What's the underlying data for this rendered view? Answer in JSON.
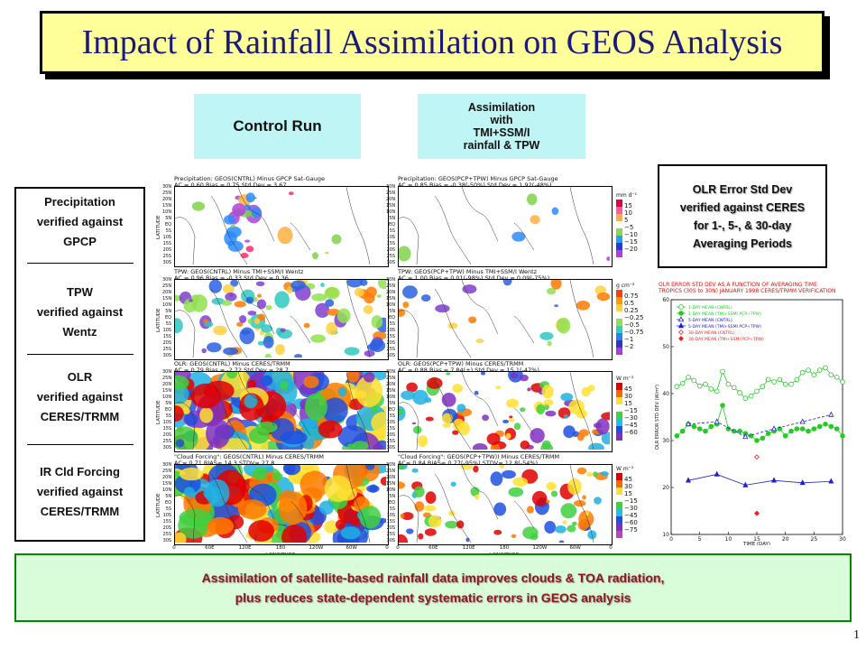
{
  "title": "Impact of Rainfall Assimilation on GEOS Analysis",
  "headers": {
    "control": "Control Run",
    "assim": [
      "Assimilation",
      "with",
      "TMI+SSM/I",
      "rainfall & TPW"
    ]
  },
  "legend": [
    {
      "id": "precip",
      "lines": [
        "Precipitation",
        "verified against",
        "GPCP"
      ]
    },
    {
      "id": "tpw",
      "lines": [
        "TPW",
        "verified against",
        "Wentz"
      ]
    },
    {
      "id": "olr",
      "lines": [
        "OLR",
        "verified against",
        "CERES/TRMM"
      ]
    },
    {
      "id": "cldforcing",
      "lines": [
        "IR Cld Forcing",
        "verified against",
        "CERES/TRMM"
      ]
    }
  ],
  "olr_box": [
    "OLR Error Std Dev",
    "verified against CERES",
    "for 1-, 5-, & 30-day",
    "Averaging Periods"
  ],
  "maps": {
    "lat_ticks": [
      "30N",
      "25N",
      "20N",
      "15N",
      "10N",
      "5N",
      "EQ",
      "5S",
      "10S",
      "15S",
      "20S",
      "25S",
      "30S"
    ],
    "lon_ticks": [
      "0",
      "60E",
      "120E",
      "180",
      "120W",
      "60W",
      "0"
    ],
    "lat_axis": "LATITUDE",
    "lon_axis": "LONGITUDE",
    "rows": [
      {
        "control": {
          "title": "Precipitation: GEOS(CNTRL) Minus GPCP Sat-Gauge",
          "stats": "AC = 0.60  Bias = 0.75  Std Dev = 3.67"
        },
        "assim": {
          "title": "Precipitation: GEOS(PCP+TPW) Minus GPCP Sat-Gauge",
          "stats": "AC = 0.85  Bias = -0.38(-50%)  Std Dev = 1.92(-48%)"
        }
      },
      {
        "control": {
          "title": "TPW: GEOS(CNTRL) Minus TMI+SSM/I Wentz",
          "stats": "AC = 0.96  Bias = -0.33  Std Dev = 0.36"
        },
        "assim": {
          "title": "TPW: GEOS(PCP+TPW) Minus TMI+SSM/I Wentz",
          "stats": "AC = 1.00  Bias = 0.01(-98%)  Std Dev = 0.09(-75%)"
        }
      },
      {
        "control": {
          "title": "OLR: GEOS(CNTRL) Minus CERES/TRMM",
          "stats": "AC = 0.79  Bias = -2.72  Std Dev = 28.7"
        },
        "assim": {
          "title": "OLR: GEOS(PCP+TPW) Minus CERES/TRMM",
          "stats": "AC = 0.88  Bias = 7.84(+)  Std Dev = 15.1(-47%)"
        }
      },
      {
        "control": {
          "title": "\"Cloud Forcing\": GEOS(CNTRL) Minus CERES/TRMM",
          "stats": "AC= 0.71  BIAS= 14.3  STDV= 27.8"
        },
        "assim": {
          "title": "\"Cloud Forcing\": GEOS(PCP+TPW)) Minus CERES/TRMM",
          "stats": "AC= 0.84  BIAS= 0.77(-95%)  STDV= 12.8(-54%)"
        }
      }
    ]
  },
  "scales": [
    {
      "unit": "mm d⁻¹",
      "labels": [
        "15",
        "10",
        "5",
        "−5",
        "−10",
        "−15",
        "−20"
      ],
      "colors": [
        "#e8003a",
        "#ff5a9a",
        "#ffb040",
        "#ffffff",
        "#8dd84a",
        "#22a0ff",
        "#2a38d8",
        "#b040d8"
      ]
    },
    {
      "unit": "g cm⁻²",
      "labels": [
        "0.75",
        "0.5",
        "0.25",
        "−0.25",
        "−0.5",
        "−0.75",
        "−1",
        "−2"
      ],
      "colors": [
        "#ff3f00",
        "#ff9a00",
        "#ffd040",
        "#ffffff",
        "#90e050",
        "#30d0c0",
        "#2a80f0",
        "#3830c8",
        "#a040d0"
      ]
    },
    {
      "unit": "W m⁻²",
      "labels": [
        "45",
        "30",
        "15",
        "−15",
        "−30",
        "−45",
        "−60"
      ],
      "colors": [
        "#e00000",
        "#ff6600",
        "#ffe030",
        "#ffffff",
        "#40d040",
        "#20c0e0",
        "#2050e0",
        "#8030c0"
      ]
    },
    {
      "unit": "W m⁻²",
      "labels": [
        "45",
        "30",
        "15",
        "−15",
        "−30",
        "−45",
        "−60",
        "−75"
      ],
      "colors": [
        "#e00000",
        "#ff6600",
        "#ffe030",
        "#ffffff",
        "#40d040",
        "#20c0e0",
        "#2050e0",
        "#8030c0",
        "#c040c0"
      ]
    }
  ],
  "chart_data": {
    "type": "line",
    "title": "OLR ERROR STD DEV AS A FUNCTION OF AVERAGING TIME",
    "subtitle": "TROPICS (30S to 30N)  JANUARY 1998  CERES/TRMM VERIFICATION",
    "xlabel": "TIME (DAY)",
    "ylabel": "OLR ERROR STD DEV (W/m²)",
    "xlim": [
      0,
      30
    ],
    "ylim": [
      10,
      60
    ],
    "xticks": [
      0,
      5,
      10,
      15,
      20,
      25,
      30
    ],
    "yticks": [
      10,
      20,
      30,
      40,
      50,
      60
    ],
    "legend_position": "top-left",
    "series": [
      {
        "name": "1-DAY MEAN (CNTRL)",
        "color": "#22cc22",
        "marker": "circle-open",
        "dash": "solid",
        "x": [
          1,
          2,
          3,
          4,
          5,
          6,
          7,
          8,
          9,
          10,
          11,
          12,
          13,
          14,
          15,
          16,
          17,
          18,
          19,
          20,
          21,
          22,
          23,
          24,
          25,
          26,
          27,
          28,
          29,
          30
        ],
        "y": [
          41.5,
          42.2,
          43.5,
          42.8,
          41.6,
          42.0,
          41.0,
          40.5,
          44.7,
          42.0,
          41.3,
          40.2,
          39.0,
          39.5,
          40.5,
          41.5,
          43.0,
          42.5,
          43.0,
          42.0,
          42.0,
          43.0,
          44.5,
          45.0,
          44.0,
          45.0,
          45.5,
          44.0,
          43.5,
          42.5
        ]
      },
      {
        "name": "1-DAY MEAN (TMI+SSMI PCP+TPW)",
        "color": "#22cc22",
        "marker": "circle",
        "dash": "solid",
        "x": [
          1,
          2,
          3,
          4,
          5,
          6,
          7,
          8,
          9,
          10,
          11,
          12,
          13,
          14,
          15,
          16,
          17,
          18,
          19,
          20,
          21,
          22,
          23,
          24,
          25,
          26,
          27,
          28,
          29,
          30
        ],
        "y": [
          31.0,
          32.0,
          33.5,
          33.0,
          32.5,
          32.0,
          33.0,
          33.5,
          37.5,
          32.5,
          32.0,
          32.0,
          31.5,
          31.0,
          30.0,
          30.5,
          31.5,
          32.0,
          32.5,
          31.0,
          32.0,
          32.5,
          32.5,
          32.0,
          32.5,
          33.0,
          33.5,
          33.0,
          32.5,
          31.0
        ]
      },
      {
        "name": "5-DAY MEAN (CNTRL)",
        "color": "#2020cc",
        "marker": "triangle-open",
        "dash": "dashed",
        "x": [
          3,
          8,
          13,
          18,
          23,
          28
        ],
        "y": [
          33.5,
          34.0,
          30.8,
          32.5,
          34.0,
          35.5
        ]
      },
      {
        "name": "5-DAY MEAN (TMI+SSMI PCP+TPW)",
        "color": "#2020cc",
        "marker": "triangle",
        "dash": "solid",
        "x": [
          3,
          8,
          13,
          18,
          23,
          28
        ],
        "y": [
          21.5,
          22.8,
          20.5,
          21.5,
          21.0,
          21.3
        ]
      },
      {
        "name": "30-DAY MEAN (CNTRL)",
        "color": "#ee2222",
        "marker": "diamond-open",
        "dash": "none",
        "x": [
          15
        ],
        "y": [
          26.5
        ]
      },
      {
        "name": "30-DAY MEAN (TMI+SSMI PCP+TPW)",
        "color": "#ee2222",
        "marker": "diamond",
        "dash": "none",
        "x": [
          15
        ],
        "y": [
          14.5
        ]
      }
    ]
  },
  "conclusion": [
    "Assimilation of satellite-based rainfall data improves clouds & TOA radiation,",
    "plus reduces state-dependent systematic errors in GEOS analysis"
  ],
  "page_number": "1",
  "colors": {
    "title_bg": "#ffff99",
    "title_text": "#1a1a7a",
    "header_bg": "#bff5f5",
    "conclusion_bg": "#d9fcd9",
    "conclusion_border": "#008800",
    "conclusion_text": "#8b1a1a"
  }
}
